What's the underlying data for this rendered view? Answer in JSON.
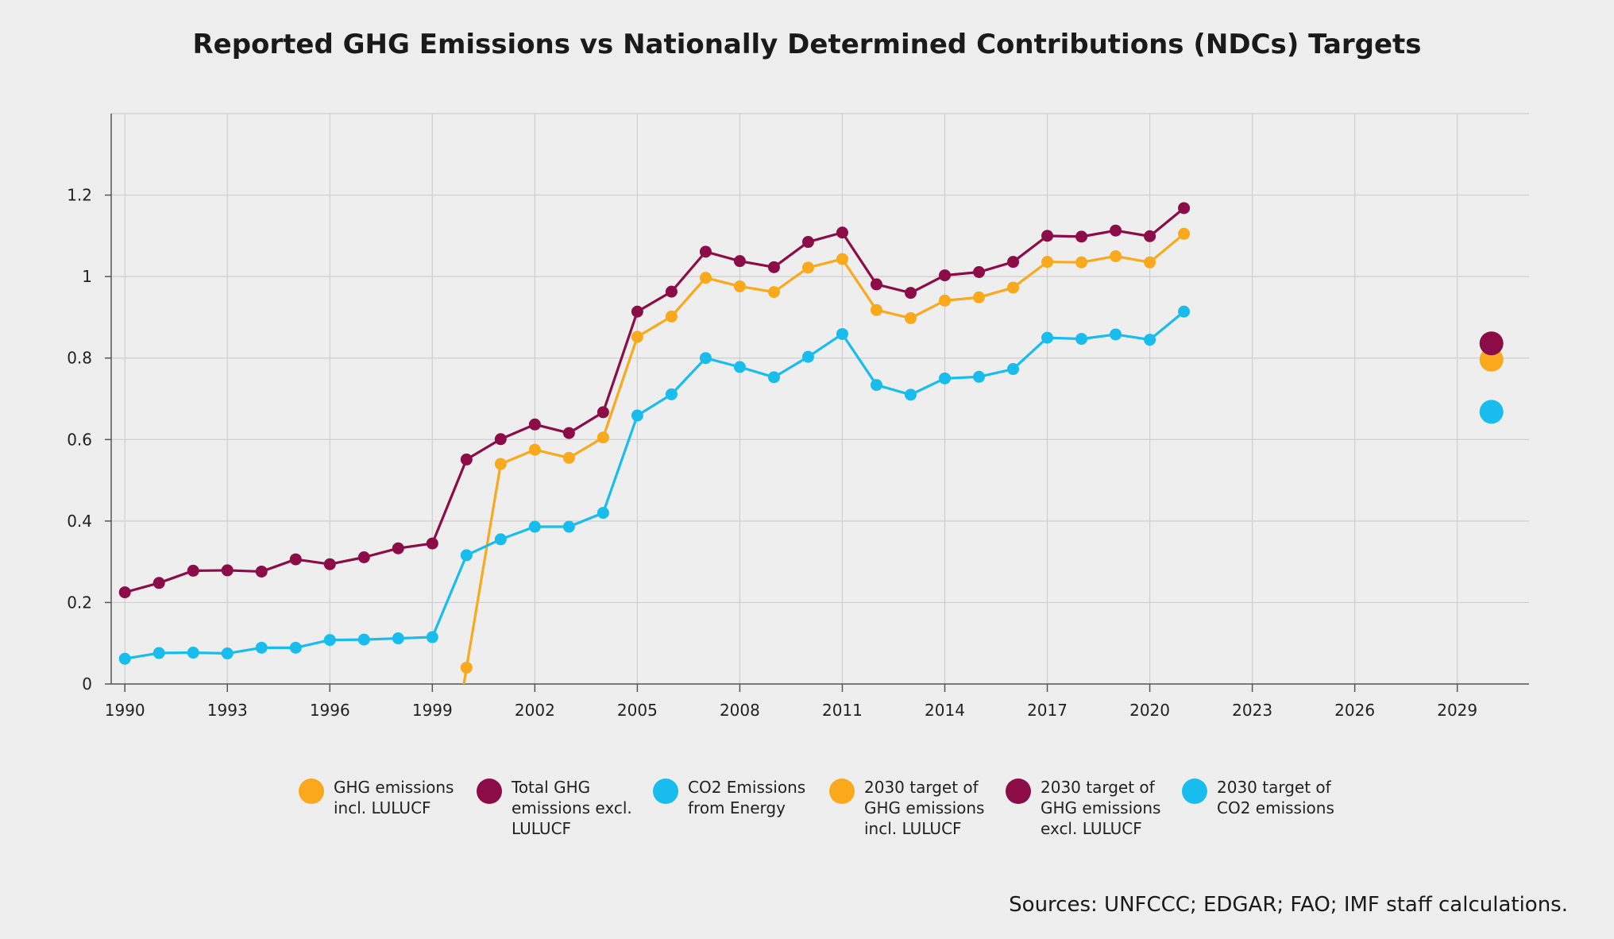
{
  "chart_data": {
    "type": "line",
    "title": "Reported GHG Emissions vs Nationally Determined Contributions (NDCs) Targets",
    "xlabel": "",
    "ylabel": "",
    "xlim": [
      1989.6,
      2031.1
    ],
    "ylim": [
      0,
      1.4
    ],
    "x_ticks": [
      1990,
      1993,
      1996,
      1999,
      2002,
      2005,
      2008,
      2011,
      2014,
      2017,
      2020,
      2023,
      2026,
      2029
    ],
    "y_ticks": [
      0,
      0.2,
      0.4,
      0.6,
      0.8,
      1,
      1.2
    ],
    "y_tick_labels": [
      "0",
      "0.2",
      "0.4",
      "0.6",
      "0.8",
      "1",
      "1.2"
    ],
    "grid": true,
    "legend_position": "bottom",
    "series": [
      {
        "name": "GHG emissions\nincl. LULUCF",
        "color": "#f9a91b",
        "style": "line-markers",
        "x": [
          2000,
          2001,
          2002,
          2003,
          2004,
          2005,
          2006,
          2007,
          2008,
          2009,
          2010,
          2011,
          2012,
          2013,
          2014,
          2015,
          2016,
          2017,
          2018,
          2019,
          2020,
          2021
        ],
        "values": [
          0.04,
          0.54,
          0.575,
          0.555,
          0.605,
          0.852,
          0.902,
          0.997,
          0.976,
          0.962,
          1.022,
          1.043,
          0.918,
          0.898,
          0.941,
          0.949,
          0.973,
          1.036,
          1.035,
          1.05,
          1.035,
          1.105
        ]
      },
      {
        "name": "Total GHG\nemissions excl.\nLULUCF",
        "color": "#8c0c48",
        "style": "line-markers",
        "x": [
          1990,
          1991,
          1992,
          1993,
          1994,
          1995,
          1996,
          1997,
          1998,
          1999,
          2000,
          2001,
          2002,
          2003,
          2004,
          2005,
          2006,
          2007,
          2008,
          2009,
          2010,
          2011,
          2012,
          2013,
          2014,
          2015,
          2016,
          2017,
          2018,
          2019,
          2020,
          2021
        ],
        "values": [
          0.225,
          0.248,
          0.278,
          0.279,
          0.276,
          0.306,
          0.294,
          0.311,
          0.333,
          0.345,
          0.551,
          0.601,
          0.637,
          0.616,
          0.667,
          0.914,
          0.963,
          1.061,
          1.038,
          1.023,
          1.085,
          1.108,
          0.981,
          0.96,
          1.003,
          1.011,
          1.036,
          1.1,
          1.098,
          1.113,
          1.099,
          1.168
        ]
      },
      {
        "name": "CO2 Emissions\nfrom Energy",
        "color": "#18bdee",
        "style": "line-markers",
        "x": [
          1990,
          1991,
          1992,
          1993,
          1994,
          1995,
          1996,
          1997,
          1998,
          1999,
          2000,
          2001,
          2002,
          2003,
          2004,
          2005,
          2006,
          2007,
          2008,
          2009,
          2010,
          2011,
          2012,
          2013,
          2014,
          2015,
          2016,
          2017,
          2018,
          2019,
          2020,
          2021
        ],
        "values": [
          0.062,
          0.076,
          0.077,
          0.075,
          0.089,
          0.089,
          0.108,
          0.109,
          0.112,
          0.115,
          0.316,
          0.355,
          0.386,
          0.386,
          0.42,
          0.659,
          0.711,
          0.8,
          0.778,
          0.753,
          0.803,
          0.859,
          0.734,
          0.71,
          0.75,
          0.754,
          0.773,
          0.85,
          0.847,
          0.858,
          0.845,
          0.914
        ]
      },
      {
        "name": "2030 target of\nGHG emissions\nincl. LULUCF",
        "color": "#f9a91b",
        "style": "point",
        "x": [
          2030
        ],
        "values": [
          0.796
        ]
      },
      {
        "name": "2030 target of\nGHG emissions\nexcl. LULUCF",
        "color": "#8c0c48",
        "style": "point",
        "x": [
          2030
        ],
        "values": [
          0.836
        ]
      },
      {
        "name": "2030 target of\nCO2 emissions",
        "color": "#18bdee",
        "style": "point",
        "x": [
          2030
        ],
        "values": [
          0.668
        ]
      }
    ],
    "source": "Sources: UNFCCC; EDGAR; FAO; IMF staff calculations."
  }
}
